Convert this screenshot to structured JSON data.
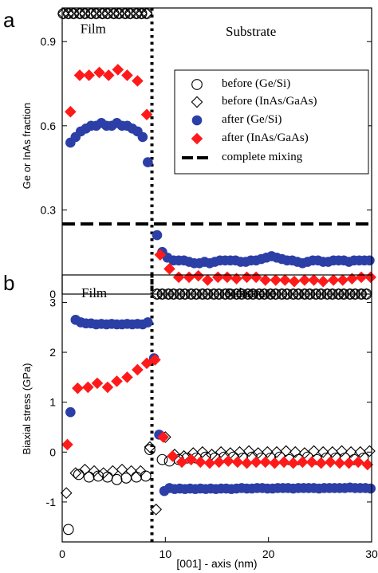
{
  "chart_data": [
    {
      "type": "scatter",
      "panel_label": "a",
      "ylabel": "Ge or InAs fraction",
      "xlim": [
        0,
        30
      ],
      "ylim": [
        0,
        1.02
      ],
      "yticks": [
        0,
        0.3,
        0.6,
        0.9
      ],
      "ytick_labels": [
        "0",
        "0.3",
        "0.6",
        "0.9"
      ],
      "grid": false,
      "legend_position": "right",
      "annotations": [
        {
          "text": "Film",
          "x": 3.0,
          "y": 0.93
        },
        {
          "text": "Substrate",
          "x": 18.3,
          "y": 0.92
        }
      ],
      "reference_lines": [
        {
          "name": "complete mixing",
          "orientation": "horizontal",
          "y": 0.25,
          "style": "dashed"
        },
        {
          "name": "interface",
          "orientation": "vertical",
          "x": 8.7,
          "style": "dotted"
        }
      ],
      "series": [
        {
          "name": "before (Ge/Si)",
          "marker": "open-circle",
          "color": "#000000",
          "x": [
            0.1,
            0.6,
            1.1,
            1.7,
            2.2,
            2.8,
            3.3,
            3.9,
            4.4,
            5.0,
            5.5,
            6.1,
            6.6,
            7.2,
            7.7,
            8.2,
            9.2,
            9.7,
            10.3,
            10.8,
            11.4,
            11.9,
            12.5,
            13.0,
            13.6,
            14.1,
            14.7,
            15.2,
            15.8,
            16.3,
            16.9,
            17.4,
            18.0,
            18.5,
            19.1,
            19.6,
            20.2,
            20.7,
            21.3,
            21.8,
            22.4,
            22.9,
            23.5,
            24.0,
            24.6,
            25.1,
            25.7,
            26.2,
            26.8,
            27.3,
            27.9,
            28.4,
            29.0,
            29.5
          ],
          "y": [
            1.0,
            1.0,
            1.0,
            1.0,
            1.0,
            1.0,
            1.0,
            1.0,
            1.0,
            1.0,
            1.0,
            1.0,
            1.0,
            1.0,
            1.0,
            1.0,
            0.0,
            0.0,
            0.0,
            0.0,
            0.0,
            0.0,
            0.0,
            0.0,
            0.0,
            0.0,
            0.0,
            0.0,
            0.0,
            0.0,
            0.0,
            0.0,
            0.0,
            0.0,
            0.0,
            0.0,
            0.0,
            0.0,
            0.0,
            0.0,
            0.0,
            0.0,
            0.0,
            0.0,
            0.0,
            0.0,
            0.0,
            0.0,
            0.0,
            0.0,
            0.0,
            0.0,
            0.0,
            0.0
          ]
        },
        {
          "name": "before (InAs/GaAs)",
          "marker": "open-diamond",
          "color": "#000000",
          "x": [
            0.1,
            0.6,
            1.1,
            1.7,
            2.2,
            2.8,
            3.3,
            3.9,
            4.4,
            5.0,
            5.5,
            6.1,
            6.6,
            7.2,
            7.7,
            8.2,
            9.2,
            9.7,
            10.3,
            10.8,
            11.4,
            11.9,
            12.5,
            13.0,
            13.6,
            14.1,
            14.7,
            15.2,
            15.8,
            16.3,
            16.9,
            17.4,
            18.0,
            18.5,
            19.1,
            19.6,
            20.2,
            20.7,
            21.3,
            21.8,
            22.4,
            22.9,
            23.5,
            24.0,
            24.6,
            25.1,
            25.7,
            26.2,
            26.8,
            27.3,
            27.9,
            28.4,
            29.0,
            29.5
          ],
          "y": [
            1.0,
            1.0,
            1.0,
            1.0,
            1.0,
            1.0,
            1.0,
            1.0,
            1.0,
            1.0,
            1.0,
            1.0,
            1.0,
            1.0,
            1.0,
            1.0,
            0.0,
            0.0,
            0.0,
            0.0,
            0.0,
            0.0,
            0.0,
            0.0,
            0.0,
            0.0,
            0.0,
            0.0,
            0.0,
            0.0,
            0.0,
            0.0,
            0.0,
            0.0,
            0.0,
            0.0,
            0.0,
            0.0,
            0.0,
            0.0,
            0.0,
            0.0,
            0.0,
            0.0,
            0.0,
            0.0,
            0.0,
            0.0,
            0.0,
            0.0,
            0.0,
            0.0,
            0.0,
            0.0
          ]
        },
        {
          "name": "after (Ge/Si)",
          "marker": "filled-circle",
          "color": "#2b3fa6",
          "x": [
            0.8,
            1.3,
            1.8,
            2.3,
            2.8,
            3.3,
            3.8,
            4.3,
            4.8,
            5.3,
            5.8,
            6.3,
            6.8,
            7.3,
            7.8,
            8.3,
            9.2,
            9.7,
            10.2,
            10.8,
            11.3,
            11.8,
            12.3,
            12.8,
            13.3,
            13.8,
            14.3,
            14.8,
            15.3,
            15.8,
            16.3,
            16.8,
            17.3,
            17.8,
            18.3,
            18.8,
            19.3,
            19.8,
            20.3,
            20.8,
            21.3,
            21.8,
            22.3,
            22.8,
            23.3,
            23.8,
            24.3,
            24.8,
            25.3,
            25.8,
            26.3,
            26.8,
            27.3,
            27.8,
            28.3,
            28.8,
            29.3,
            29.8
          ],
          "y": [
            0.54,
            0.56,
            0.58,
            0.59,
            0.6,
            0.6,
            0.61,
            0.6,
            0.6,
            0.61,
            0.6,
            0.6,
            0.59,
            0.58,
            0.56,
            0.47,
            0.21,
            0.15,
            0.13,
            0.12,
            0.12,
            0.12,
            0.115,
            0.11,
            0.11,
            0.115,
            0.11,
            0.115,
            0.12,
            0.12,
            0.12,
            0.12,
            0.115,
            0.115,
            0.12,
            0.12,
            0.125,
            0.13,
            0.135,
            0.13,
            0.125,
            0.12,
            0.12,
            0.115,
            0.11,
            0.115,
            0.12,
            0.12,
            0.115,
            0.115,
            0.12,
            0.12,
            0.12,
            0.115,
            0.12,
            0.12,
            0.12,
            0.12
          ]
        },
        {
          "name": "after (InAs/GaAs)",
          "marker": "filled-diamond",
          "color": "#ff1a1a",
          "x": [
            0.8,
            1.7,
            2.6,
            3.6,
            4.5,
            5.4,
            6.3,
            7.3,
            8.2,
            9.5,
            10.4,
            11.3,
            12.3,
            13.2,
            14.1,
            15.1,
            16.0,
            16.9,
            17.9,
            18.8,
            19.7,
            20.7,
            21.6,
            22.5,
            23.5,
            24.4,
            25.3,
            26.3,
            27.2,
            28.1,
            29.0,
            29.9
          ],
          "y": [
            0.65,
            0.78,
            0.78,
            0.79,
            0.78,
            0.8,
            0.78,
            0.76,
            0.64,
            0.14,
            0.09,
            0.06,
            0.06,
            0.065,
            0.05,
            0.06,
            0.06,
            0.055,
            0.06,
            0.06,
            0.05,
            0.05,
            0.05,
            0.045,
            0.05,
            0.05,
            0.045,
            0.05,
            0.05,
            0.055,
            0.06,
            0.06
          ]
        }
      ]
    },
    {
      "type": "scatter",
      "panel_label": "b",
      "ylabel": "Biaxial stress (GPa)",
      "xlabel": "[001] - axis (nm)",
      "xlim": [
        0,
        30
      ],
      "ylim": [
        -1.8,
        3.55
      ],
      "xticks": [
        0,
        10,
        20,
        30
      ],
      "xtick_labels": [
        "0",
        "10",
        "20",
        "30"
      ],
      "yticks": [
        -1,
        0,
        1,
        2,
        3
      ],
      "ytick_labels": [
        "-1",
        "0",
        "1",
        "2",
        "3"
      ],
      "grid": false,
      "annotations": [
        {
          "text": "Film",
          "x": 3.1,
          "y": 3.1
        },
        {
          "text": "Substrate",
          "x": 18.2,
          "y": 3.1
        }
      ],
      "reference_lines": [
        {
          "name": "interface",
          "orientation": "vertical",
          "x": 8.7,
          "style": "dotted"
        }
      ],
      "series": [
        {
          "name": "before (Ge/Si)",
          "marker": "open-circle",
          "color": "#000000",
          "x": [
            0.6,
            1.6,
            2.6,
            3.5,
            4.4,
            5.3,
            6.2,
            7.2,
            8.1,
            8.5,
            9.7,
            10.4,
            11.3,
            12.1,
            13.0,
            13.9,
            14.8,
            15.7,
            16.6,
            17.5,
            18.4,
            19.3,
            20.2,
            21.1,
            22.0,
            22.9,
            23.8,
            24.7,
            25.6,
            26.5,
            27.4,
            28.3,
            29.2
          ],
          "y": [
            -1.55,
            -0.45,
            -0.5,
            -0.48,
            -0.5,
            -0.55,
            -0.52,
            -0.5,
            -0.48,
            0.05,
            -0.15,
            -0.18,
            -0.15,
            -0.12,
            -0.12,
            -0.1,
            -0.12,
            -0.1,
            -0.1,
            -0.12,
            -0.1,
            -0.12,
            -0.12,
            -0.1,
            -0.15,
            -0.15,
            -0.1,
            -0.15,
            -0.12,
            -0.12,
            -0.12,
            -0.15,
            -0.12
          ]
        },
        {
          "name": "before (InAs/GaAs)",
          "marker": "open-diamond",
          "color": "#000000",
          "x": [
            0.4,
            1.3,
            2.2,
            3.1,
            4.0,
            4.9,
            5.8,
            6.7,
            7.6,
            8.5,
            9.1,
            10.0,
            10.9,
            11.8,
            12.7,
            13.6,
            14.5,
            15.4,
            16.3,
            17.2,
            18.1,
            19.0,
            19.9,
            20.8,
            21.7,
            22.6,
            23.5,
            24.4,
            25.3,
            26.2,
            27.1,
            28.0,
            28.9,
            29.8
          ],
          "y": [
            -0.82,
            -0.42,
            -0.35,
            -0.38,
            -0.42,
            -0.38,
            -0.35,
            -0.38,
            -0.38,
            0.1,
            -1.15,
            0.3,
            -0.05,
            -0.08,
            -0.02,
            0.0,
            -0.05,
            0.0,
            -0.02,
            0.0,
            0.02,
            -0.02,
            0.0,
            0.0,
            0.02,
            0.0,
            -0.02,
            0.02,
            0.0,
            0.0,
            0.02,
            0.0,
            0.0,
            0.02
          ]
        },
        {
          "name": "after (Ge/Si)",
          "marker": "filled-circle",
          "color": "#2b3fa6",
          "x": [
            0.8,
            1.3,
            1.8,
            2.3,
            2.8,
            3.3,
            3.8,
            4.3,
            4.8,
            5.3,
            5.8,
            6.3,
            6.8,
            7.3,
            7.8,
            8.3,
            8.9,
            9.4,
            9.9,
            10.4,
            10.9,
            11.4,
            11.9,
            12.4,
            12.9,
            13.4,
            13.9,
            14.4,
            14.9,
            15.4,
            15.9,
            16.4,
            16.9,
            17.4,
            17.9,
            18.4,
            18.9,
            19.4,
            19.9,
            20.4,
            20.9,
            21.4,
            21.9,
            22.4,
            22.9,
            23.4,
            23.9,
            24.4,
            24.9,
            25.4,
            25.9,
            26.4,
            26.9,
            27.4,
            27.9,
            28.4,
            28.9,
            29.4,
            29.9
          ],
          "y": [
            0.8,
            2.65,
            2.6,
            2.58,
            2.58,
            2.56,
            2.57,
            2.56,
            2.57,
            2.56,
            2.56,
            2.57,
            2.56,
            2.57,
            2.56,
            2.6,
            1.88,
            0.35,
            -0.78,
            -0.72,
            -0.74,
            -0.73,
            -0.74,
            -0.73,
            -0.74,
            -0.73,
            -0.74,
            -0.73,
            -0.74,
            -0.73,
            -0.73,
            -0.74,
            -0.73,
            -0.72,
            -0.73,
            -0.73,
            -0.72,
            -0.72,
            -0.73,
            -0.73,
            -0.72,
            -0.72,
            -0.72,
            -0.73,
            -0.72,
            -0.72,
            -0.72,
            -0.72,
            -0.73,
            -0.72,
            -0.72,
            -0.72,
            -0.72,
            -0.72,
            -0.71,
            -0.72,
            -0.72,
            -0.72,
            -0.73
          ]
        },
        {
          "name": "after (InAs/GaAs)",
          "marker": "filled-diamond",
          "color": "#ff1a1a",
          "x": [
            0.5,
            1.5,
            2.5,
            3.4,
            4.4,
            5.3,
            6.3,
            7.3,
            8.2,
            9.0,
            9.8,
            10.7,
            11.6,
            12.5,
            13.4,
            14.3,
            15.2,
            16.1,
            17.0,
            17.9,
            18.8,
            19.7,
            20.6,
            21.5,
            22.4,
            23.3,
            24.2,
            25.1,
            26.0,
            26.9,
            27.8,
            28.7,
            29.6
          ],
          "y": [
            0.15,
            1.28,
            1.3,
            1.38,
            1.3,
            1.42,
            1.5,
            1.65,
            1.78,
            1.85,
            0.3,
            -0.08,
            -0.2,
            -0.15,
            -0.2,
            -0.22,
            -0.2,
            -0.18,
            -0.2,
            -0.22,
            -0.2,
            -0.2,
            -0.22,
            -0.2,
            -0.22,
            -0.2,
            -0.2,
            -0.22,
            -0.2,
            -0.22,
            -0.22,
            -0.2,
            -0.25
          ]
        }
      ]
    }
  ]
}
